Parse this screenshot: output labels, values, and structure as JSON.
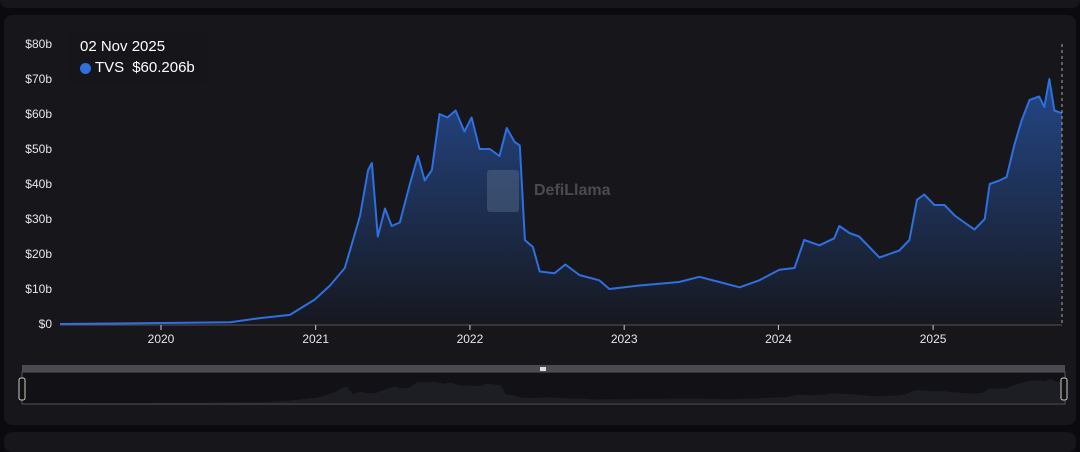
{
  "tooltip": {
    "date": "02 Nov 2025",
    "series": "TVS",
    "value": "$60.206b"
  },
  "watermark": "DefiLlama",
  "chart_data": {
    "type": "area",
    "series": [
      {
        "name": "TVS",
        "color": "#2f6fe0",
        "points": [
          [
            "2019-05-07",
            0
          ],
          [
            "2020-06-13",
            0.5
          ],
          [
            "2020-08-22",
            1.7
          ],
          [
            "2020-11-01",
            2.6
          ],
          [
            "2020-12-30",
            7
          ],
          [
            "2021-02-04",
            11
          ],
          [
            "2021-03-11",
            16
          ],
          [
            "2021-03-28",
            23
          ],
          [
            "2021-04-16",
            31
          ],
          [
            "2021-05-05",
            44
          ],
          [
            "2021-05-14",
            46
          ],
          [
            "2021-05-28",
            25
          ],
          [
            "2021-06-14",
            33
          ],
          [
            "2021-06-30",
            28
          ],
          [
            "2021-07-19",
            29
          ],
          [
            "2021-08-12",
            40
          ],
          [
            "2021-08-31",
            48
          ],
          [
            "2021-09-16",
            41
          ],
          [
            "2021-10-03",
            44
          ],
          [
            "2021-10-21",
            60
          ],
          [
            "2021-11-09",
            59
          ],
          [
            "2021-11-28",
            61
          ],
          [
            "2021-12-19",
            55
          ],
          [
            "2022-01-05",
            59
          ],
          [
            "2022-01-24",
            50
          ],
          [
            "2022-02-17",
            50
          ],
          [
            "2022-03-12",
            48
          ],
          [
            "2022-03-29",
            56
          ],
          [
            "2022-04-17",
            52
          ],
          [
            "2022-04-29",
            51
          ],
          [
            "2022-05-11",
            24
          ],
          [
            "2022-05-30",
            22
          ],
          [
            "2022-06-15",
            15
          ],
          [
            "2022-07-20",
            14.5
          ],
          [
            "2022-08-15",
            17
          ],
          [
            "2022-09-17",
            14
          ],
          [
            "2022-11-03",
            12.5
          ],
          [
            "2022-11-27",
            10
          ],
          [
            "2023-02-06",
            11
          ],
          [
            "2023-05-11",
            12
          ],
          [
            "2023-06-28",
            13.5
          ],
          [
            "2023-08-14",
            12
          ],
          [
            "2023-10-01",
            10.5
          ],
          [
            "2023-11-17",
            12.5
          ],
          [
            "2024-01-03",
            15.5
          ],
          [
            "2024-02-08",
            16
          ],
          [
            "2024-03-02",
            24
          ],
          [
            "2024-04-07",
            22.5
          ],
          [
            "2024-05-12",
            24.5
          ],
          [
            "2024-05-24",
            28
          ],
          [
            "2024-06-17",
            26
          ],
          [
            "2024-07-10",
            25
          ],
          [
            "2024-08-03",
            22
          ],
          [
            "2024-08-27",
            19
          ],
          [
            "2024-10-13",
            21
          ],
          [
            "2024-11-06",
            24
          ],
          [
            "2024-11-24",
            35.5
          ],
          [
            "2024-12-11",
            37
          ],
          [
            "2025-01-04",
            34
          ],
          [
            "2025-01-28",
            34
          ],
          [
            "2025-02-21",
            31
          ],
          [
            "2025-03-16",
            29
          ],
          [
            "2025-04-09",
            27
          ],
          [
            "2025-05-03",
            30
          ],
          [
            "2025-05-15",
            40
          ],
          [
            "2025-06-07",
            41
          ],
          [
            "2025-06-24",
            42
          ],
          [
            "2025-07-12",
            51
          ],
          [
            "2025-07-29",
            58
          ],
          [
            "2025-08-17",
            64
          ],
          [
            "2025-09-09",
            65
          ],
          [
            "2025-09-21",
            62
          ],
          [
            "2025-10-03",
            70
          ],
          [
            "2025-10-15",
            61
          ],
          [
            "2025-11-02",
            60.206
          ]
        ]
      }
    ],
    "y_ticks": [
      "$0",
      "$10b",
      "$20b",
      "$30b",
      "$40b",
      "$50b",
      "$60b",
      "$70b",
      "$80b"
    ],
    "ylim": [
      0,
      80
    ],
    "x_ticks": [
      "2020",
      "2021",
      "2022",
      "2023",
      "2024",
      "2025"
    ],
    "xlim": [
      "2019-05-07",
      "2025-11-02"
    ],
    "grid": false,
    "hover_date": "2025-11-02"
  },
  "colors": {
    "line": "#2f6fe0",
    "background": "#16161b"
  }
}
